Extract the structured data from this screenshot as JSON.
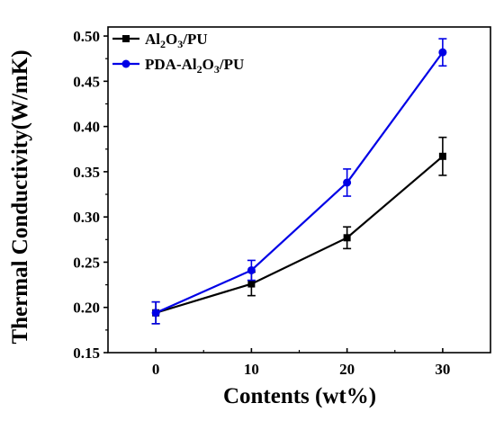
{
  "chart_data": {
    "type": "line",
    "xlabel": "Contents (wt%)",
    "ylabel": "Thermal Conductivity(W/mK)",
    "x": [
      0,
      10,
      20,
      30
    ],
    "xlim": [
      -5,
      35
    ],
    "ylim": [
      0.15,
      0.51
    ],
    "xticks": [
      0,
      10,
      20,
      30
    ],
    "yticks": [
      0.15,
      0.2,
      0.25,
      0.3,
      0.35,
      0.4,
      0.45,
      0.5
    ],
    "xtick_labels": [
      "0",
      "10",
      "20",
      "30"
    ],
    "ytick_labels": [
      "0.15",
      "0.20",
      "0.25",
      "0.30",
      "0.35",
      "0.40",
      "0.45",
      "0.50"
    ],
    "grid": false,
    "legend_position": "top-left",
    "series": [
      {
        "name_parts": [
          "Al",
          "2",
          "O",
          "3",
          "/PU"
        ],
        "color": "#000000",
        "marker": "square",
        "values": [
          0.194,
          0.226,
          0.277,
          0.367
        ],
        "errors": [
          0.012,
          0.013,
          0.012,
          0.021
        ]
      },
      {
        "name_parts": [
          "PDA-Al",
          "2",
          "O",
          "3",
          "/PU"
        ],
        "color": "#0000e6",
        "marker": "circle",
        "values": [
          0.194,
          0.241,
          0.338,
          0.482
        ],
        "errors": [
          0.012,
          0.011,
          0.015,
          0.015
        ]
      }
    ]
  }
}
